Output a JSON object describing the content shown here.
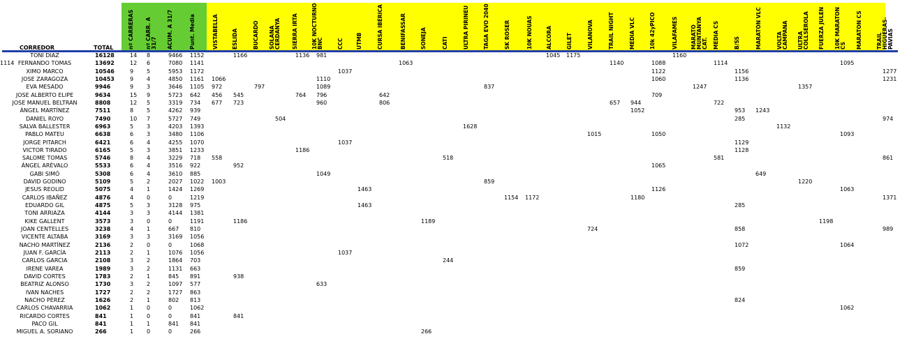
{
  "headers": {
    "corredor": "CORREDOR",
    "total": "TOTAL",
    "stats": [
      "nº CARRERAS",
      "nº CARR. A 31/7",
      "ACUM. A 31/7",
      "Punt. Media"
    ],
    "races": [
      "VISTABELLA",
      "ESLIDA",
      "BUCARDO",
      "SOLANA\nCERDANYA",
      "SIERRA IRTA",
      "10K NOCTURNO\nBNC",
      "CCC",
      "UTMB",
      "CURSA IBÉRICA",
      "BENIFASSAR",
      "SONEJA",
      "CATI",
      "ULTRA PIRINEU",
      "TAGA EVO 2040",
      "SK ROSER",
      "10K NOUAS",
      "ALCORA",
      "GILET",
      "VILANOVA",
      "TRAIL NIGHT",
      "MEDIA VLC",
      "10k 42yPICO",
      "VILAFAMES",
      "MARATÓ\nMUNTANYA CAT.",
      "MEDIA CS",
      "B/SS",
      "MARATÓN VLC",
      "VOLTA CAMPANA",
      "ULTRA\nCOLLSEROLA",
      "FUERZA JULEN",
      "10K MARATON\nCS",
      "MARATON CS",
      "TRAIL HIGUERAS-\nPAVIAS"
    ]
  },
  "rows": [
    {
      "name": "TONI DIAZ",
      "total": "16128",
      "stats": [
        "14",
        "8",
        "9466",
        "1152"
      ],
      "marks": [
        [
          "1166",
          1
        ],
        [
          "1136",
          4
        ],
        [
          "981",
          5
        ],
        [
          "1045",
          16
        ],
        [
          "1175",
          17
        ],
        [
          "1160",
          22
        ]
      ]
    },
    {
      "name": "FERNANDO TOMAS",
      "total": "13692",
      "stats": [
        "12",
        "6",
        "7080",
        "1141"
      ],
      "marks": [
        [
          "1063",
          9
        ],
        [
          "1140",
          19
        ],
        [
          "1088",
          21
        ],
        [
          "1114",
          24
        ],
        [
          "1095",
          30
        ],
        [
          "1114",
          33
        ]
      ]
    },
    {
      "name": "XIMO MARCO",
      "total": "10546",
      "stats": [
        "9",
        "5",
        "5953",
        "1172"
      ],
      "marks": [
        [
          "1037",
          6
        ],
        [
          "1122",
          21
        ],
        [
          "1156",
          25
        ],
        [
          "1277",
          32
        ]
      ]
    },
    {
      "name": "JOSE ZARAGOZA",
      "total": "10453",
      "stats": [
        "9",
        "4",
        "4850",
        "1161"
      ],
      "marks": [
        [
          "1066",
          0
        ],
        [
          "1110",
          5
        ],
        [
          "1060",
          21
        ],
        [
          "1136",
          25
        ],
        [
          "1231",
          32
        ]
      ]
    },
    {
      "name": "EVA MESADO",
      "total": "9946",
      "stats": [
        "9",
        "3",
        "3646",
        "1105"
      ],
      "marks": [
        [
          "972",
          0
        ],
        [
          "797",
          2
        ],
        [
          "1089",
          5
        ],
        [
          "837",
          13
        ],
        [
          "1247",
          23
        ],
        [
          "1357",
          28
        ]
      ]
    },
    {
      "name": "JOSE ALBERTO ELIPE",
      "total": "9634",
      "stats": [
        "15",
        "9",
        "5723",
        "642"
      ],
      "marks": [
        [
          "456",
          0
        ],
        [
          "545",
          1
        ],
        [
          "764",
          4
        ],
        [
          "796",
          5
        ],
        [
          "642",
          8
        ],
        [
          "709",
          21
        ]
      ]
    },
    {
      "name": "JOSE MANUEL BELTRAN",
      "total": "8808",
      "stats": [
        "12",
        "5",
        "3319",
        "734"
      ],
      "marks": [
        [
          "677",
          0
        ],
        [
          "723",
          1
        ],
        [
          "960",
          5
        ],
        [
          "806",
          8
        ],
        [
          "657",
          19
        ],
        [
          "944",
          20
        ],
        [
          "722",
          24
        ]
      ]
    },
    {
      "name": "ÁNGEL MARTÍNEZ",
      "total": "7511",
      "stats": [
        "8",
        "5",
        "4262",
        "939"
      ],
      "marks": [
        [
          "1052",
          20
        ],
        [
          "953",
          25
        ],
        [
          "1243",
          26
        ]
      ]
    },
    {
      "name": "DANIEL ROYO",
      "total": "7490",
      "stats": [
        "10",
        "7",
        "5727",
        "749"
      ],
      "marks": [
        [
          "504",
          3
        ],
        [
          "285",
          25
        ],
        [
          "974",
          32
        ]
      ]
    },
    {
      "name": "SALVA BALLESTER",
      "total": "6963",
      "stats": [
        "5",
        "3",
        "4203",
        "1393"
      ],
      "marks": [
        [
          "1628",
          12
        ],
        [
          "1132",
          27
        ]
      ]
    },
    {
      "name": "PABLO MATEU",
      "total": "6638",
      "stats": [
        "6",
        "3",
        "3480",
        "1106"
      ],
      "marks": [
        [
          "1015",
          18
        ],
        [
          "1050",
          21
        ],
        [
          "1093",
          30
        ]
      ]
    },
    {
      "name": "JORGE PITARCH",
      "total": "6421",
      "stats": [
        "6",
        "4",
        "4255",
        "1070"
      ],
      "marks": [
        [
          "1037",
          6
        ],
        [
          "1129",
          25
        ]
      ]
    },
    {
      "name": "VICTOR TIRADO",
      "total": "6165",
      "stats": [
        "5",
        "3",
        "3851",
        "1233"
      ],
      "marks": [
        [
          "1186",
          4
        ],
        [
          "1128",
          25
        ]
      ]
    },
    {
      "name": "SALOME TOMAS",
      "total": "5746",
      "stats": [
        "8",
        "4",
        "3229",
        "718"
      ],
      "marks": [
        [
          "558",
          0
        ],
        [
          "518",
          11
        ],
        [
          "581",
          24
        ],
        [
          "861",
          32
        ]
      ]
    },
    {
      "name": "ÁNGEL ARÉVALO",
      "total": "5533",
      "stats": [
        "6",
        "4",
        "3516",
        "922"
      ],
      "marks": [
        [
          "952",
          1
        ],
        [
          "1065",
          21
        ]
      ]
    },
    {
      "name": "GABI SIMÓ",
      "total": "5308",
      "stats": [
        "6",
        "4",
        "3610",
        "885"
      ],
      "marks": [
        [
          "1049",
          5
        ],
        [
          "649",
          26
        ]
      ]
    },
    {
      "name": "DAVID GODINO",
      "total": "5109",
      "stats": [
        "5",
        "2",
        "2027",
        "1022"
      ],
      "marks": [
        [
          "1003",
          0
        ],
        [
          "859",
          13
        ],
        [
          "1220",
          28
        ]
      ]
    },
    {
      "name": "JESUS REOLID",
      "total": "5075",
      "stats": [
        "4",
        "1",
        "1424",
        "1269"
      ],
      "marks": [
        [
          "1463",
          7
        ],
        [
          "1126",
          21
        ],
        [
          "1063",
          30
        ]
      ]
    },
    {
      "name": "CARLOS IBAÑEZ",
      "total": "4876",
      "stats": [
        "4",
        "0",
        "0",
        "1219"
      ],
      "marks": [
        [
          "1154",
          14
        ],
        [
          "1172",
          15
        ],
        [
          "1180",
          20
        ],
        [
          "1371",
          32
        ]
      ]
    },
    {
      "name": "EDUARDO GIL",
      "total": "4875",
      "stats": [
        "5",
        "3",
        "3128",
        "975"
      ],
      "marks": [
        [
          "1463",
          7
        ],
        [
          "285",
          25
        ]
      ]
    },
    {
      "name": "TONI ARRIAZA",
      "total": "4144",
      "stats": [
        "3",
        "3",
        "4144",
        "1381"
      ],
      "marks": []
    },
    {
      "name": "KIKE GALLENT",
      "total": "3573",
      "stats": [
        "3",
        "0",
        "0",
        "1191"
      ],
      "marks": [
        [
          "1186",
          1
        ],
        [
          "1189",
          10
        ],
        [
          "1198",
          29
        ]
      ]
    },
    {
      "name": "JOAN CENTELLES",
      "total": "3238",
      "stats": [
        "4",
        "1",
        "667",
        "810"
      ],
      "marks": [
        [
          "724",
          18
        ],
        [
          "858",
          25
        ],
        [
          "989",
          32
        ]
      ]
    },
    {
      "name": "VICENTE ALTABA",
      "total": "3169",
      "stats": [
        "3",
        "3",
        "3169",
        "1056"
      ],
      "marks": []
    },
    {
      "name": "NACHO MARTÍNEZ",
      "total": "2136",
      "stats": [
        "2",
        "0",
        "0",
        "1068"
      ],
      "marks": [
        [
          "1072",
          25
        ],
        [
          "1064",
          30
        ]
      ]
    },
    {
      "name": "JUAN F. GARCÍA",
      "total": "2113",
      "stats": [
        "2",
        "1",
        "1076",
        "1056"
      ],
      "marks": [
        [
          "1037",
          6
        ]
      ]
    },
    {
      "name": "CARLOS GARCIA",
      "total": "2108",
      "stats": [
        "3",
        "2",
        "1864",
        "703"
      ],
      "marks": [
        [
          "244",
          11
        ]
      ]
    },
    {
      "name": "IRENE VAREA",
      "total": "1989",
      "stats": [
        "3",
        "2",
        "1131",
        "663"
      ],
      "marks": [
        [
          "859",
          25
        ]
      ]
    },
    {
      "name": "DAVID CORTES",
      "total": "1783",
      "stats": [
        "2",
        "1",
        "845",
        "891"
      ],
      "marks": [
        [
          "938",
          1
        ]
      ]
    },
    {
      "name": "BEATRIZ ALONSO",
      "total": "1730",
      "stats": [
        "3",
        "2",
        "1097",
        "577"
      ],
      "marks": [
        [
          "633",
          5
        ]
      ]
    },
    {
      "name": "IVAN NACHES",
      "total": "1727",
      "stats": [
        "2",
        "2",
        "1727",
        "863"
      ],
      "marks": []
    },
    {
      "name": "NACHO PÉREZ",
      "total": "1626",
      "stats": [
        "2",
        "1",
        "802",
        "813"
      ],
      "marks": [
        [
          "824",
          25
        ]
      ]
    },
    {
      "name": "CARLOS CHAVARRIA",
      "total": "1062",
      "stats": [
        "1",
        "0",
        "0",
        "1062"
      ],
      "marks": [
        [
          "1062",
          30
        ]
      ]
    },
    {
      "name": "RICARDO CORTES",
      "total": "841",
      "stats": [
        "1",
        "0",
        "0",
        "841"
      ],
      "marks": [
        [
          "841",
          1
        ]
      ]
    },
    {
      "name": "PACO GIL",
      "total": "841",
      "stats": [
        "1",
        "1",
        "841",
        "841"
      ],
      "marks": []
    },
    {
      "name": "MIGUEL A. SORIANO",
      "total": "266",
      "stats": [
        "1",
        "0",
        "0",
        "266"
      ],
      "marks": [
        [
          "266",
          10
        ]
      ]
    }
  ]
}
